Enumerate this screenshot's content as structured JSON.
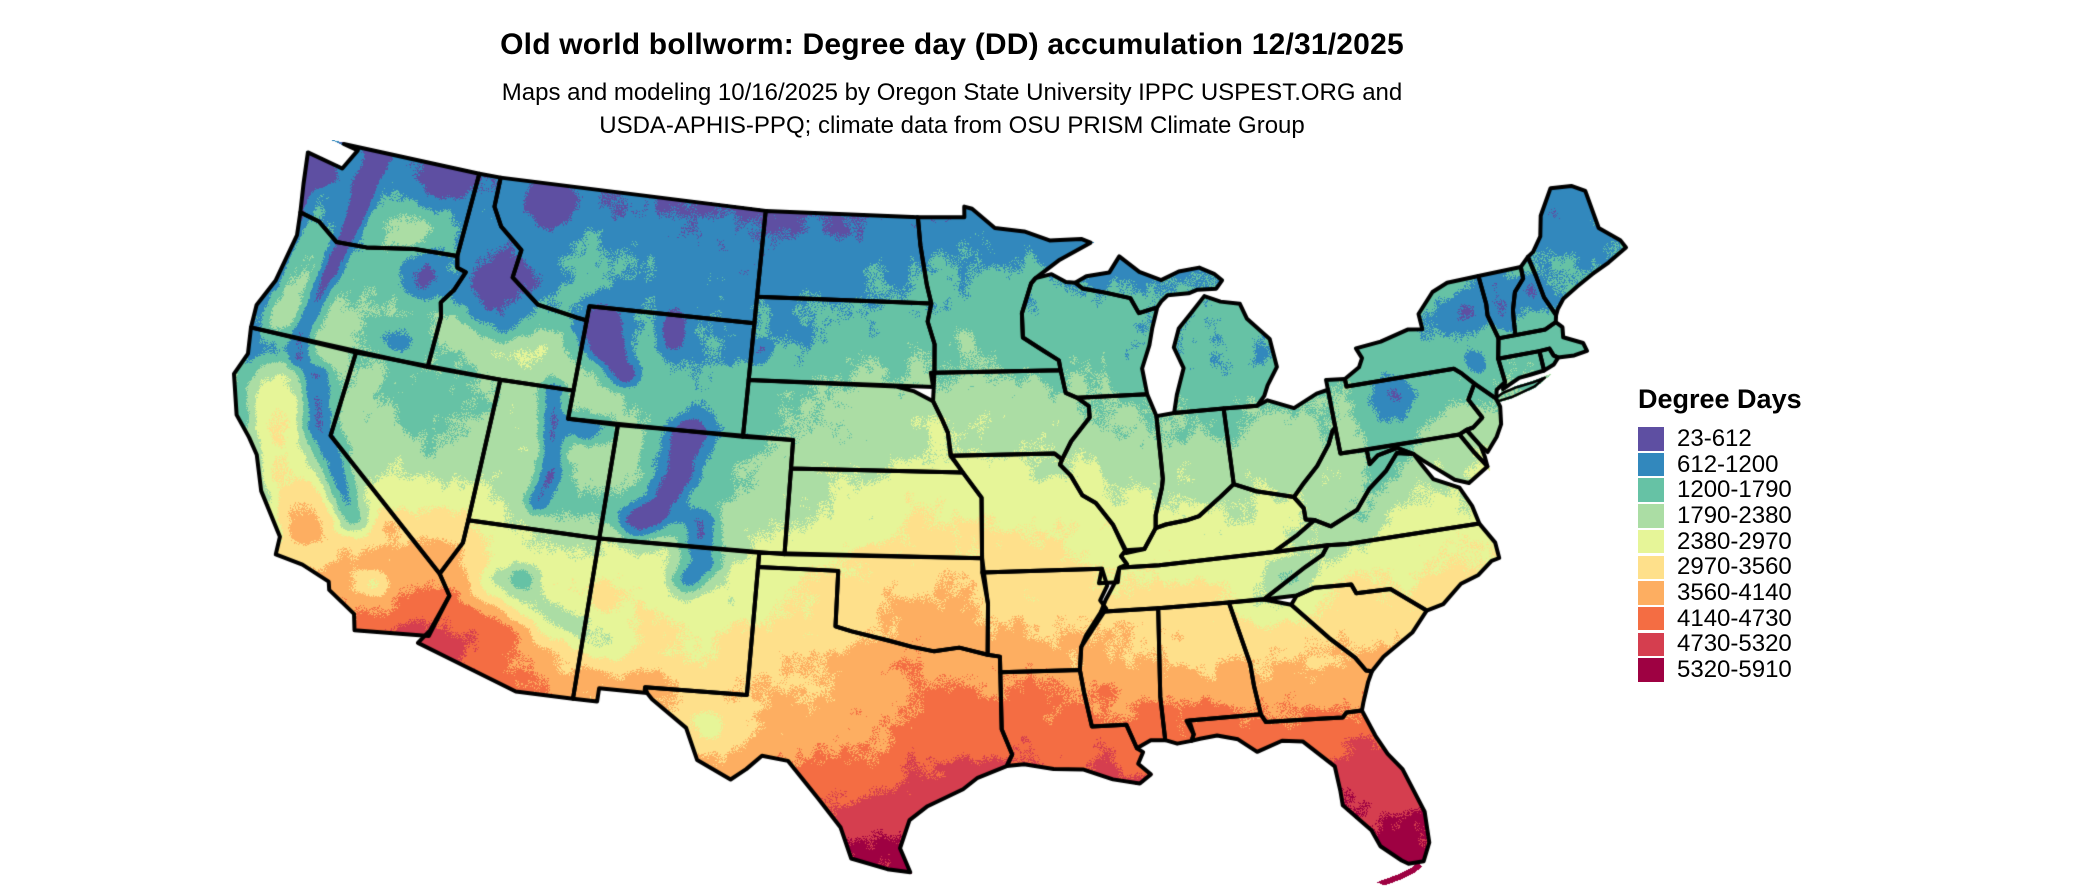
{
  "header": {
    "title": "Old world bollworm: Degree day (DD) accumulation 12/31/2025",
    "subtitle_line1": "Maps and modeling 10/16/2025 by Oregon State University IPPC USPEST.ORG and",
    "subtitle_line2": "USDA-APHIS-PPQ; climate data from OSU PRISM Climate Group"
  },
  "legend": {
    "title": "Degree Days",
    "entries": [
      {
        "label": "23-612",
        "color": "#5e4fa2"
      },
      {
        "label": "612-1200",
        "color": "#3288bd"
      },
      {
        "label": "1200-1790",
        "color": "#66c2a5"
      },
      {
        "label": "1790-2380",
        "color": "#abdda4"
      },
      {
        "label": "2380-2970",
        "color": "#e6f598"
      },
      {
        "label": "2970-3560",
        "color": "#fee08b"
      },
      {
        "label": "3560-4140",
        "color": "#fdae61"
      },
      {
        "label": "4140-4730",
        "color": "#f46d43"
      },
      {
        "label": "4730-5320",
        "color": "#d53e4f"
      },
      {
        "label": "5320-5910",
        "color": "#9e0142"
      }
    ]
  },
  "map": {
    "region": "Contiguous United States",
    "value_min": 23,
    "value_max": 5910,
    "border_color": "#000000",
    "background_color": "#ffffff"
  }
}
